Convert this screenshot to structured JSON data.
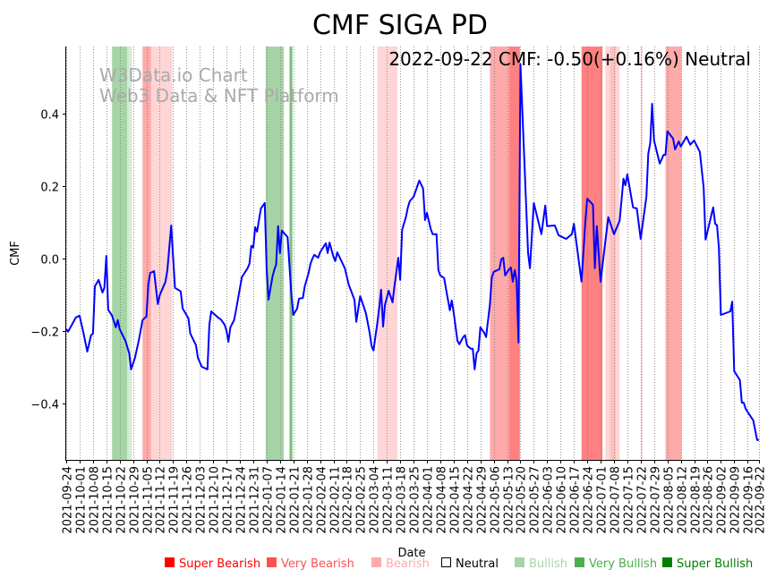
{
  "chart_data": {
    "type": "line",
    "title": "CMF SIGA PD",
    "annotation": "2022-09-22 CMF: -0.50(+0.16%) Neutral",
    "watermark": [
      "W3Data.io Chart",
      "Web3 Data & NFT Platform"
    ],
    "xlabel": "Date",
    "ylabel": "CMF",
    "start_date": "2021-09-24",
    "xlim_days": [
      0,
      363
    ],
    "ylim": [
      -0.556,
      0.585
    ],
    "grid": "vertical dotted at each x tick",
    "yticks": [
      -0.4,
      -0.2,
      0.0,
      0.2,
      0.4
    ],
    "ytick_labels": [
      "−0.4",
      "−0.2",
      "0.0",
      "0.2",
      "0.4"
    ],
    "xtick_labels": [
      "2021-09-24",
      "2021-10-01",
      "2021-10-08",
      "2021-10-15",
      "2021-10-22",
      "2021-10-29",
      "2021-11-05",
      "2021-11-12",
      "2021-11-19",
      "2021-11-26",
      "2021-12-03",
      "2021-12-10",
      "2021-12-17",
      "2021-12-24",
      "2021-12-31",
      "2022-01-07",
      "2022-01-14",
      "2022-01-21",
      "2022-01-28",
      "2022-02-04",
      "2022-02-11",
      "2022-02-18",
      "2022-02-25",
      "2022-03-04",
      "2022-03-11",
      "2022-03-18",
      "2022-03-25",
      "2022-04-01",
      "2022-04-08",
      "2022-04-15",
      "2022-04-22",
      "2022-04-29",
      "2022-05-06",
      "2022-05-13",
      "2022-05-20",
      "2022-05-27",
      "2022-06-03",
      "2022-06-10",
      "2022-06-17",
      "2022-06-24",
      "2022-07-01",
      "2022-07-08",
      "2022-07-15",
      "2022-07-22",
      "2022-07-29",
      "2022-08-05",
      "2022-08-12",
      "2022-08-19",
      "2022-08-26",
      "2022-09-02",
      "2022-09-09",
      "2022-09-16",
      "2022-09-22"
    ],
    "series": [
      {
        "name": "CMF",
        "color": "#0000ff",
        "points_day_value": [
          [
            0,
            -0.195
          ],
          [
            1,
            -0.202
          ],
          [
            5,
            -0.163
          ],
          [
            7,
            -0.158
          ],
          [
            9,
            -0.205
          ],
          [
            11,
            -0.257
          ],
          [
            13,
            -0.212
          ],
          [
            14,
            -0.207
          ],
          [
            15,
            -0.077
          ],
          [
            17,
            -0.059
          ],
          [
            19,
            -0.094
          ],
          [
            20,
            -0.081
          ],
          [
            21,
            0.007
          ],
          [
            22,
            -0.141
          ],
          [
            24,
            -0.158
          ],
          [
            26,
            -0.19
          ],
          [
            27,
            -0.17
          ],
          [
            28,
            -0.195
          ],
          [
            31,
            -0.227
          ],
          [
            33,
            -0.262
          ],
          [
            34,
            -0.306
          ],
          [
            36,
            -0.274
          ],
          [
            38,
            -0.227
          ],
          [
            40,
            -0.17
          ],
          [
            42,
            -0.16
          ],
          [
            43,
            -0.072
          ],
          [
            44,
            -0.04
          ],
          [
            46,
            -0.035
          ],
          [
            48,
            -0.126
          ],
          [
            49,
            -0.101
          ],
          [
            52,
            -0.064
          ],
          [
            53,
            -0.032
          ],
          [
            55,
            0.091
          ],
          [
            57,
            -0.081
          ],
          [
            60,
            -0.091
          ],
          [
            61,
            -0.138
          ],
          [
            64,
            -0.165
          ],
          [
            65,
            -0.207
          ],
          [
            68,
            -0.24
          ],
          [
            69,
            -0.274
          ],
          [
            71,
            -0.299
          ],
          [
            74,
            -0.306
          ],
          [
            75,
            -0.183
          ],
          [
            76,
            -0.146
          ],
          [
            80,
            -0.165
          ],
          [
            81,
            -0.168
          ],
          [
            83,
            -0.183
          ],
          [
            84,
            -0.2
          ],
          [
            85,
            -0.23
          ],
          [
            86,
            -0.19
          ],
          [
            88,
            -0.17
          ],
          [
            89,
            -0.141
          ],
          [
            92,
            -0.052
          ],
          [
            95,
            -0.027
          ],
          [
            96,
            -0.015
          ],
          [
            97,
            0.035
          ],
          [
            98,
            0.03
          ],
          [
            99,
            0.086
          ],
          [
            100,
            0.074
          ],
          [
            102,
            0.138
          ],
          [
            104,
            0.153
          ],
          [
            105,
            -0.027
          ],
          [
            106,
            -0.114
          ],
          [
            108,
            -0.052
          ],
          [
            109,
            -0.032
          ],
          [
            110,
            -0.017
          ],
          [
            111,
            0.089
          ],
          [
            112,
            0.015
          ],
          [
            113,
            0.077
          ],
          [
            116,
            0.059
          ],
          [
            118,
            -0.101
          ],
          [
            119,
            -0.156
          ],
          [
            121,
            -0.138
          ],
          [
            122,
            -0.111
          ],
          [
            124,
            -0.109
          ],
          [
            125,
            -0.077
          ],
          [
            127,
            -0.04
          ],
          [
            128,
            -0.015
          ],
          [
            129,
            0.0
          ],
          [
            130,
            0.01
          ],
          [
            132,
            0.002
          ],
          [
            133,
            0.017
          ],
          [
            136,
            0.042
          ],
          [
            137,
            0.015
          ],
          [
            138,
            0.044
          ],
          [
            140,
            0.005
          ],
          [
            141,
            -0.007
          ],
          [
            142,
            0.017
          ],
          [
            146,
            -0.027
          ],
          [
            148,
            -0.072
          ],
          [
            151,
            -0.114
          ],
          [
            152,
            -0.175
          ],
          [
            154,
            -0.104
          ],
          [
            157,
            -0.151
          ],
          [
            159,
            -0.205
          ],
          [
            160,
            -0.242
          ],
          [
            161,
            -0.254
          ],
          [
            163,
            -0.178
          ],
          [
            164,
            -0.136
          ],
          [
            165,
            -0.086
          ],
          [
            166,
            -0.188
          ],
          [
            167,
            -0.128
          ],
          [
            169,
            -0.089
          ],
          [
            171,
            -0.121
          ],
          [
            172,
            -0.077
          ],
          [
            174,
            0.002
          ],
          [
            175,
            -0.059
          ],
          [
            176,
            0.079
          ],
          [
            178,
            0.114
          ],
          [
            179,
            0.141
          ],
          [
            180,
            0.158
          ],
          [
            182,
            0.17
          ],
          [
            184,
            0.2
          ],
          [
            185,
            0.215
          ],
          [
            187,
            0.193
          ],
          [
            188,
            0.106
          ],
          [
            189,
            0.126
          ],
          [
            191,
            0.081
          ],
          [
            192,
            0.067
          ],
          [
            194,
            0.067
          ],
          [
            195,
            -0.032
          ],
          [
            196,
            -0.047
          ],
          [
            198,
            -0.054
          ],
          [
            199,
            -0.084
          ],
          [
            201,
            -0.143
          ],
          [
            202,
            -0.116
          ],
          [
            203,
            -0.148
          ],
          [
            205,
            -0.227
          ],
          [
            206,
            -0.237
          ],
          [
            208,
            -0.217
          ],
          [
            209,
            -0.212
          ],
          [
            210,
            -0.24
          ],
          [
            212,
            -0.249
          ],
          [
            213,
            -0.249
          ],
          [
            214,
            -0.306
          ],
          [
            215,
            -0.262
          ],
          [
            216,
            -0.254
          ],
          [
            217,
            -0.19
          ],
          [
            219,
            -0.205
          ],
          [
            220,
            -0.217
          ],
          [
            222,
            -0.126
          ],
          [
            223,
            -0.052
          ],
          [
            224,
            -0.037
          ],
          [
            226,
            -0.032
          ],
          [
            227,
            -0.03
          ],
          [
            228,
            -0.002
          ],
          [
            229,
            0.002
          ],
          [
            230,
            -0.047
          ],
          [
            232,
            -0.03
          ],
          [
            233,
            -0.025
          ],
          [
            234,
            -0.064
          ],
          [
            235,
            -0.032
          ],
          [
            236,
            -0.062
          ],
          [
            237,
            -0.232
          ],
          [
            238,
            0.536
          ],
          [
            242,
            0.015
          ],
          [
            243,
            -0.027
          ],
          [
            245,
            0.153
          ],
          [
            249,
            0.067
          ],
          [
            251,
            0.146
          ],
          [
            252,
            0.089
          ],
          [
            256,
            0.091
          ],
          [
            258,
            0.064
          ],
          [
            262,
            0.054
          ],
          [
            265,
            0.067
          ],
          [
            266,
            0.096
          ],
          [
            270,
            -0.064
          ],
          [
            272,
            0.101
          ],
          [
            273,
            0.165
          ],
          [
            276,
            0.148
          ],
          [
            277,
            -0.027
          ],
          [
            278,
            0.089
          ],
          [
            280,
            -0.064
          ],
          [
            284,
            0.114
          ],
          [
            287,
            0.067
          ],
          [
            290,
            0.104
          ],
          [
            292,
            0.22
          ],
          [
            293,
            0.202
          ],
          [
            294,
            0.232
          ],
          [
            297,
            0.141
          ],
          [
            299,
            0.138
          ],
          [
            301,
            0.054
          ],
          [
            304,
            0.17
          ],
          [
            305,
            0.289
          ],
          [
            306,
            0.319
          ],
          [
            307,
            0.427
          ],
          [
            308,
            0.326
          ],
          [
            311,
            0.262
          ],
          [
            313,
            0.286
          ],
          [
            314,
            0.286
          ],
          [
            315,
            0.351
          ],
          [
            318,
            0.331
          ],
          [
            319,
            0.301
          ],
          [
            321,
            0.323
          ],
          [
            322,
            0.309
          ],
          [
            325,
            0.336
          ],
          [
            327,
            0.314
          ],
          [
            329,
            0.326
          ],
          [
            332,
            0.294
          ],
          [
            334,
            0.195
          ],
          [
            335,
            0.052
          ],
          [
            339,
            0.141
          ],
          [
            340,
            0.096
          ],
          [
            341,
            0.091
          ],
          [
            342,
            0.03
          ],
          [
            343,
            -0.156
          ],
          [
            348,
            -0.146
          ],
          [
            349,
            -0.119
          ],
          [
            350,
            -0.311
          ],
          [
            353,
            -0.336
          ],
          [
            354,
            -0.398
          ],
          [
            355,
            -0.398
          ],
          [
            356,
            -0.415
          ],
          [
            360,
            -0.447
          ],
          [
            362,
            -0.501
          ],
          [
            363,
            -0.501
          ]
        ]
      }
    ],
    "signal_bands": [
      {
        "from": 24,
        "to": 32,
        "signal": "Very Bullish",
        "color": "#a6d4a6"
      },
      {
        "from": 32,
        "to": 34.3,
        "signal": "Bullish",
        "color": "#d3ead3"
      },
      {
        "from": 40,
        "to": 44.5,
        "signal": "Very Bearish",
        "color": "#ffaaaa"
      },
      {
        "from": 44.5,
        "to": 55.5,
        "signal": "Bearish",
        "color": "#ffd5d5"
      },
      {
        "from": 104.5,
        "to": 114,
        "signal": "Very Bullish",
        "color": "#a6d4a6"
      },
      {
        "from": 117,
        "to": 118.5,
        "signal": "Very Bullish",
        "color": "#7fbf7f"
      },
      {
        "from": 163,
        "to": 173.5,
        "signal": "Bearish",
        "color": "#ffd5d5"
      },
      {
        "from": 222,
        "to": 232,
        "signal": "Very Bearish",
        "color": "#ffaaaa"
      },
      {
        "from": 232,
        "to": 237.7,
        "signal": "Super Bearish",
        "color": "#ff8080"
      },
      {
        "from": 270,
        "to": 281,
        "signal": "Super Bearish",
        "color": "#ff8080"
      },
      {
        "from": 282.5,
        "to": 290,
        "signal": "Bearish",
        "color": "#ffd5d5"
      },
      {
        "from": 285,
        "to": 288,
        "signal": "Very Bearish",
        "color": "#ffc0c0"
      },
      {
        "from": 301,
        "to": 302,
        "signal": "Bearish",
        "color": "#ffd5d5"
      },
      {
        "from": 314,
        "to": 322.5,
        "signal": "Very Bearish",
        "color": "#ffaaaa"
      }
    ],
    "legend": {
      "placement": "bottom",
      "items": [
        {
          "label": "Super Bearish",
          "color": "#ff0000",
          "text_color": "#ff0000"
        },
        {
          "label": "Very Bearish",
          "color": "#ff5050",
          "text_color": "#ff5050"
        },
        {
          "label": "Bearish",
          "color": "#ffaaaa",
          "text_color": "#ffaaaa"
        },
        {
          "label": "Neutral",
          "color": "none",
          "text_color": "#000000"
        },
        {
          "label": "Bullish",
          "color": "#a6d4a6",
          "text_color": "#a6d4a6"
        },
        {
          "label": "Very Bullish",
          "color": "#4caf4c",
          "text_color": "#4caf4c"
        },
        {
          "label": "Super Bullish",
          "color": "#008000",
          "text_color": "#008000"
        }
      ]
    }
  }
}
